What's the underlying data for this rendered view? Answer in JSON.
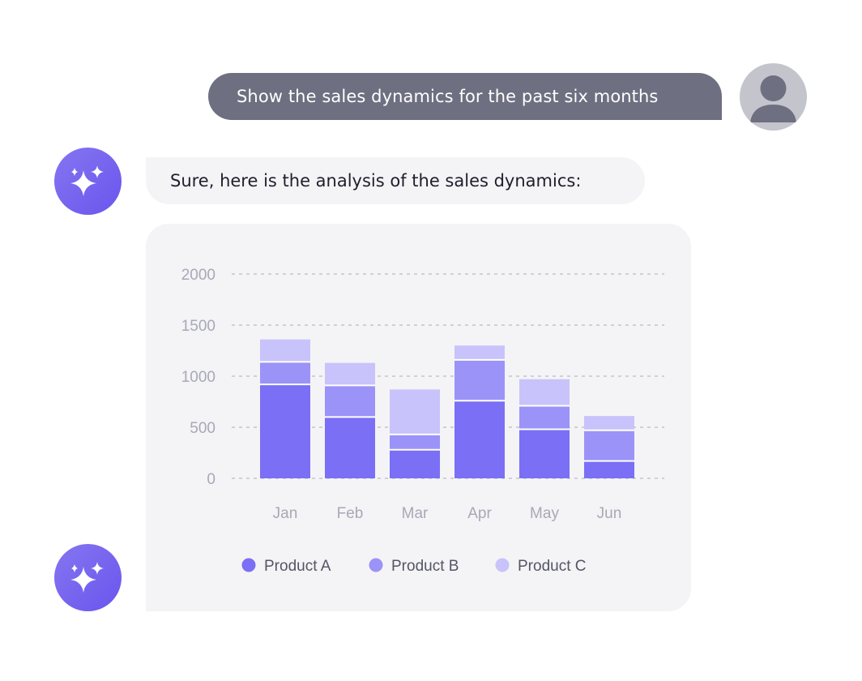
{
  "conversation": {
    "user_message": "Show the sales dynamics for the past six months",
    "assistant_message": "Sure, here is the analysis of the sales dynamics:"
  },
  "icons": {
    "user_avatar": "user-icon",
    "assistant_avatar": "sparkles-icon"
  },
  "colors": {
    "user_bubble": "#6e6f80",
    "assistant_bubble": "#f4f4f6",
    "accent": "#6a55ee",
    "product_a": "#7a6ff5",
    "product_b": "#9b93f7",
    "product_c": "#c8c3fa"
  },
  "chart_data": {
    "type": "bar",
    "stacked": true,
    "categories": [
      "Jan",
      "Feb",
      "Mar",
      "Apr",
      "May",
      "Jun"
    ],
    "series": [
      {
        "name": "Product A",
        "values": [
          920,
          600,
          280,
          760,
          480,
          170
        ]
      },
      {
        "name": "Product B",
        "values": [
          220,
          310,
          150,
          400,
          230,
          300
        ]
      },
      {
        "name": "Product C",
        "values": [
          220,
          220,
          440,
          140,
          260,
          140
        ]
      }
    ],
    "ylim": [
      0,
      2000
    ],
    "yticks": [
      0,
      500,
      1000,
      1500,
      2000
    ],
    "grid": true,
    "legend": "bottom",
    "title": "",
    "xlabel": "",
    "ylabel": ""
  }
}
